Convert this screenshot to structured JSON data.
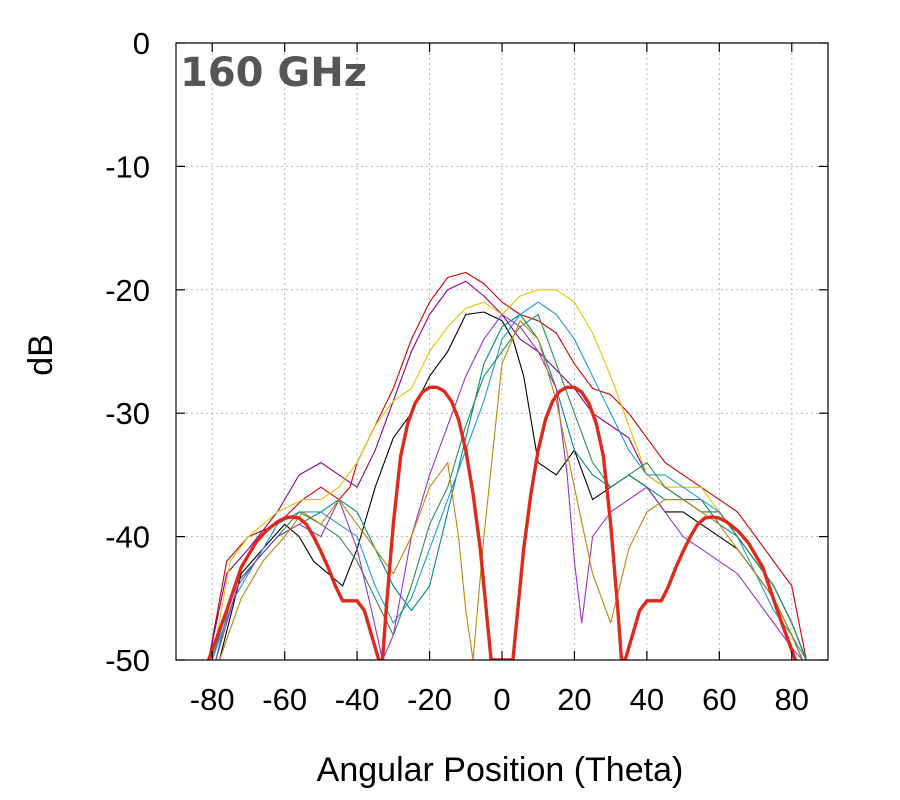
{
  "chart_data": {
    "type": "line",
    "annotation": "160 GHz",
    "xlabel": "Angular Position (Theta)",
    "ylabel": "dB",
    "xlim": [
      -90,
      90
    ],
    "ylim": [
      -50,
      0
    ],
    "xticks": [
      -80,
      -60,
      -40,
      -20,
      0,
      20,
      40,
      60,
      80
    ],
    "yticks": [
      0,
      -10,
      -20,
      -30,
      -40,
      -50
    ],
    "grid": true,
    "legend": "none",
    "series": [
      {
        "color": "#cc0000",
        "x": [
          -81,
          -76,
          -70,
          -62,
          -55,
          -50,
          -45,
          -42,
          -40,
          -35,
          -30,
          -25,
          -20,
          -15,
          -10,
          -5,
          0,
          5,
          10,
          15,
          20,
          25,
          30,
          35,
          40,
          45,
          50,
          55,
          60,
          65,
          70,
          75,
          80,
          84
        ],
        "y": [
          -50,
          -42,
          -40,
          -39,
          -37,
          -36,
          -37,
          -36,
          -34,
          -31,
          -28,
          -24,
          -21,
          -19,
          -18.6,
          -19.5,
          -21,
          -22,
          -22.5,
          -23.5,
          -26,
          -28,
          -28.5,
          -30,
          -32,
          -34,
          -35,
          -36,
          -37,
          -38,
          -40,
          -42,
          -44,
          -50
        ]
      },
      {
        "color": "#8b008b",
        "x": [
          -81,
          -76,
          -70,
          -62,
          -56,
          -50,
          -45,
          -40,
          -35,
          -30,
          -25,
          -20,
          -15,
          -10,
          -5,
          0,
          5,
          10,
          15,
          20,
          25,
          30,
          35,
          40,
          45,
          50,
          55,
          60,
          65,
          70,
          75,
          80,
          84
        ],
        "y": [
          -50,
          -43,
          -41,
          -38,
          -35,
          -34,
          -35,
          -36,
          -33,
          -29,
          -25,
          -22,
          -20,
          -19.3,
          -20.5,
          -22,
          -24,
          -25,
          -26.5,
          -28,
          -30,
          -31,
          -32,
          -35,
          -36,
          -37,
          -38,
          -38,
          -40,
          -42,
          -44,
          -47,
          -50
        ]
      },
      {
        "color": "#e6c200",
        "x": [
          -80,
          -75,
          -70,
          -62,
          -55,
          -50,
          -45,
          -40,
          -35,
          -30,
          -25,
          -20,
          -15,
          -10,
          -5,
          0,
          5,
          10,
          15,
          20,
          25,
          30,
          35,
          40,
          45,
          50,
          55,
          60,
          65,
          70,
          75,
          80,
          84
        ],
        "y": [
          -50,
          -42,
          -40,
          -38,
          -37,
          -37,
          -36,
          -34,
          -31,
          -29,
          -28,
          -25,
          -23,
          -21.5,
          -21,
          -22,
          -20.5,
          -20,
          -20,
          -21,
          -23.5,
          -27,
          -31,
          -35,
          -36,
          -36,
          -36,
          -38,
          -40,
          -42,
          -44,
          -47,
          -50
        ]
      },
      {
        "color": "#000000",
        "x": [
          -78,
          -72,
          -66,
          -60,
          -56,
          -52,
          -48,
          -44,
          -40,
          -35,
          -30,
          -25,
          -20,
          -15,
          -10,
          -5,
          0,
          3,
          6,
          10,
          15,
          20,
          25,
          30,
          35,
          40,
          45,
          50,
          55,
          60,
          65,
          70,
          75,
          80,
          83
        ],
        "y": [
          -50,
          -43,
          -41,
          -39,
          -40,
          -42,
          -43,
          -44,
          -41,
          -36,
          -32,
          -30,
          -27,
          -25,
          -22,
          -21.8,
          -22.5,
          -24,
          -27,
          -34,
          -35,
          -33,
          -37,
          -36,
          -35,
          -36,
          -38,
          -38,
          -39,
          -40,
          -41,
          -43,
          -45,
          -48,
          -50
        ]
      },
      {
        "color": "#008b8b",
        "x": [
          -80,
          -74,
          -68,
          -62,
          -56,
          -50,
          -45,
          -40,
          -35,
          -30,
          -25,
          -20,
          -15,
          -10,
          -5,
          0,
          5,
          10,
          15,
          20,
          25,
          30,
          35,
          40,
          45,
          50,
          55,
          60,
          65,
          70,
          75,
          80,
          84
        ],
        "y": [
          -50,
          -44,
          -42,
          -40,
          -39,
          -38,
          -37,
          -38,
          -41,
          -44,
          -46,
          -44,
          -38,
          -32,
          -26,
          -23,
          -22,
          -24,
          -28,
          -33,
          -35,
          -36,
          -35,
          -36,
          -37,
          -37,
          -37,
          -39,
          -40,
          -42,
          -44,
          -47,
          -50
        ]
      },
      {
        "color": "#1f9ad1",
        "x": [
          -80,
          -74,
          -68,
          -62,
          -56,
          -50,
          -45,
          -40,
          -35,
          -30,
          -25,
          -20,
          -15,
          -10,
          -5,
          0,
          5,
          10,
          15,
          20,
          25,
          30,
          35,
          40,
          45,
          50,
          55,
          60,
          65,
          70,
          75,
          80,
          84
        ],
        "y": [
          -50,
          -45,
          -42,
          -39,
          -38,
          -38,
          -39,
          -40,
          -44,
          -47,
          -45,
          -41,
          -37,
          -33,
          -29,
          -24,
          -22,
          -21,
          -22,
          -24,
          -27,
          -30,
          -33,
          -35,
          -35,
          -36,
          -37,
          -38,
          -40,
          -43,
          -46,
          -48,
          -50
        ]
      },
      {
        "color": "#2e8b57",
        "x": [
          -79,
          -74,
          -68,
          -62,
          -56,
          -50,
          -45,
          -40,
          -35,
          -30,
          -25,
          -20,
          -15,
          -10,
          -5,
          0,
          5,
          10,
          15,
          20,
          25,
          30,
          35,
          40,
          45,
          50,
          55,
          60,
          65,
          70,
          75,
          80,
          84
        ],
        "y": [
          -50,
          -44,
          -42,
          -40,
          -38,
          -39,
          -40,
          -42,
          -45,
          -48,
          -44,
          -39,
          -36,
          -31,
          -27,
          -25,
          -23,
          -22,
          -26,
          -30,
          -34,
          -36,
          -35,
          -34,
          -36,
          -37,
          -38,
          -38,
          -40,
          -42,
          -44,
          -47,
          -50
        ]
      },
      {
        "color": "#9932cc",
        "x": [
          -79,
          -73,
          -68,
          -62,
          -56,
          -50,
          -45,
          -40,
          -36,
          -33,
          -30,
          -25,
          -20,
          -15,
          -10,
          -5,
          0,
          5,
          10,
          15,
          18,
          20,
          22,
          25,
          30,
          35,
          40,
          45,
          50,
          55,
          60,
          65,
          70,
          75,
          80,
          83
        ],
        "y": [
          -50,
          -44,
          -42,
          -40,
          -39,
          -40,
          -37,
          -41,
          -46,
          -50,
          -48,
          -40,
          -35,
          -31,
          -27,
          -24,
          -22,
          -23,
          -25,
          -28,
          -35,
          -42,
          -47,
          -40,
          -38,
          -37,
          -36,
          -38,
          -40,
          -41,
          -42,
          -43,
          -45,
          -47,
          -49,
          -50
        ]
      },
      {
        "color": "#b8860b",
        "x": [
          -78,
          -72,
          -66,
          -60,
          -55,
          -50,
          -45,
          -40,
          -35,
          -30,
          -25,
          -20,
          -15,
          -12,
          -10,
          -8,
          -5,
          0,
          5,
          10,
          15,
          20,
          25,
          30,
          35,
          40,
          45,
          50,
          55,
          60,
          65,
          70,
          75,
          80,
          83
        ],
        "y": [
          -50,
          -45,
          -42,
          -40,
          -38,
          -39,
          -37,
          -39,
          -41,
          -43,
          -40,
          -36,
          -34,
          -40,
          -46,
          -50,
          -40,
          -26,
          -22.5,
          -24,
          -29,
          -36,
          -43,
          -47,
          -41,
          -38,
          -37,
          -37,
          -38,
          -39,
          -41,
          -43,
          -45,
          -48,
          -50
        ]
      },
      {
        "color": "#dd2a1b",
        "thick": true,
        "x": [
          -81,
          -76,
          -72,
          -68,
          -65,
          -62,
          -60,
          -58,
          -56,
          -54,
          -52,
          -50,
          -48,
          -46,
          -44,
          -42,
          -40,
          -38,
          -36,
          -34,
          -33,
          -32,
          -30,
          -28,
          -26,
          -24,
          -22,
          -20,
          -18,
          -16,
          -14,
          -12,
          -10,
          -8,
          -6,
          -4,
          -3,
          -1.5,
          1.5,
          3,
          4,
          6,
          8,
          10,
          12,
          14,
          16,
          18,
          20,
          22,
          24,
          26,
          28,
          30,
          32,
          33,
          34,
          36,
          38,
          40,
          42,
          44,
          46,
          48,
          50,
          52,
          54,
          56,
          58,
          60,
          62,
          65,
          68,
          72,
          76,
          81
        ],
        "y": [
          -50,
          -46,
          -42.5,
          -40.5,
          -39.5,
          -38.8,
          -38.5,
          -38.4,
          -38.5,
          -39,
          -40,
          -41.2,
          -42.5,
          -44,
          -45.2,
          -45.2,
          -45.2,
          -46,
          -48,
          -50,
          -50,
          -46,
          -39,
          -33.5,
          -30.8,
          -29.2,
          -28.3,
          -27.9,
          -27.9,
          -28.2,
          -29,
          -30.5,
          -33,
          -36.5,
          -41,
          -47,
          -50,
          -50,
          -50,
          -50,
          -47,
          -41,
          -36.5,
          -33,
          -30.5,
          -29,
          -28.2,
          -27.9,
          -27.9,
          -28.3,
          -29.2,
          -30.8,
          -33.5,
          -39,
          -46,
          -50,
          -50,
          -48,
          -46,
          -45.2,
          -45.2,
          -45.2,
          -44,
          -42.5,
          -41.2,
          -40,
          -39,
          -38.5,
          -38.4,
          -38.5,
          -38.8,
          -39.5,
          -40.5,
          -42.5,
          -46,
          -50
        ]
      }
    ]
  }
}
